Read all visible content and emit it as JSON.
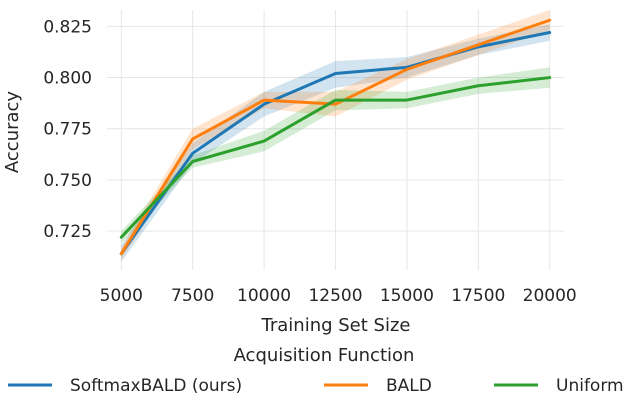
{
  "chart_data": {
    "type": "line",
    "xlabel": "Training Set Size",
    "ylabel": "Accuracy",
    "x": [
      5000,
      7500,
      10000,
      12500,
      15000,
      17500,
      20000
    ],
    "xticks": [
      "5000",
      "7500",
      "10000",
      "12500",
      "15000",
      "17500",
      "20000"
    ],
    "yticks": [
      "0.725",
      "0.750",
      "0.775",
      "0.800",
      "0.825"
    ],
    "xlim": [
      4500,
      20500
    ],
    "ylim": [
      0.706,
      0.833
    ],
    "grid": true,
    "legend": {
      "title": "Acquisition Function",
      "placement": "bottom"
    },
    "series": [
      {
        "name": "SoftmaxBALD (ours)",
        "color": "#1f77b4",
        "values": [
          0.714,
          0.763,
          0.787,
          0.802,
          0.805,
          0.815,
          0.822
        ],
        "lower": [
          0.71,
          0.758,
          0.781,
          0.795,
          0.8,
          0.811,
          0.818
        ],
        "upper": [
          0.718,
          0.768,
          0.793,
          0.808,
          0.81,
          0.819,
          0.826
        ]
      },
      {
        "name": "BALD",
        "color": "#ff7f0e",
        "values": [
          0.714,
          0.77,
          0.789,
          0.787,
          0.804,
          0.816,
          0.828
        ],
        "lower": [
          0.711,
          0.765,
          0.785,
          0.781,
          0.799,
          0.811,
          0.823
        ],
        "upper": [
          0.717,
          0.775,
          0.793,
          0.793,
          0.809,
          0.821,
          0.833
        ]
      },
      {
        "name": "Uniform",
        "color": "#2ca02c",
        "values": [
          0.722,
          0.759,
          0.769,
          0.789,
          0.789,
          0.796,
          0.8
        ],
        "lower": [
          0.719,
          0.756,
          0.764,
          0.784,
          0.785,
          0.792,
          0.795
        ],
        "upper": [
          0.725,
          0.762,
          0.774,
          0.794,
          0.793,
          0.8,
          0.805
        ]
      }
    ]
  }
}
